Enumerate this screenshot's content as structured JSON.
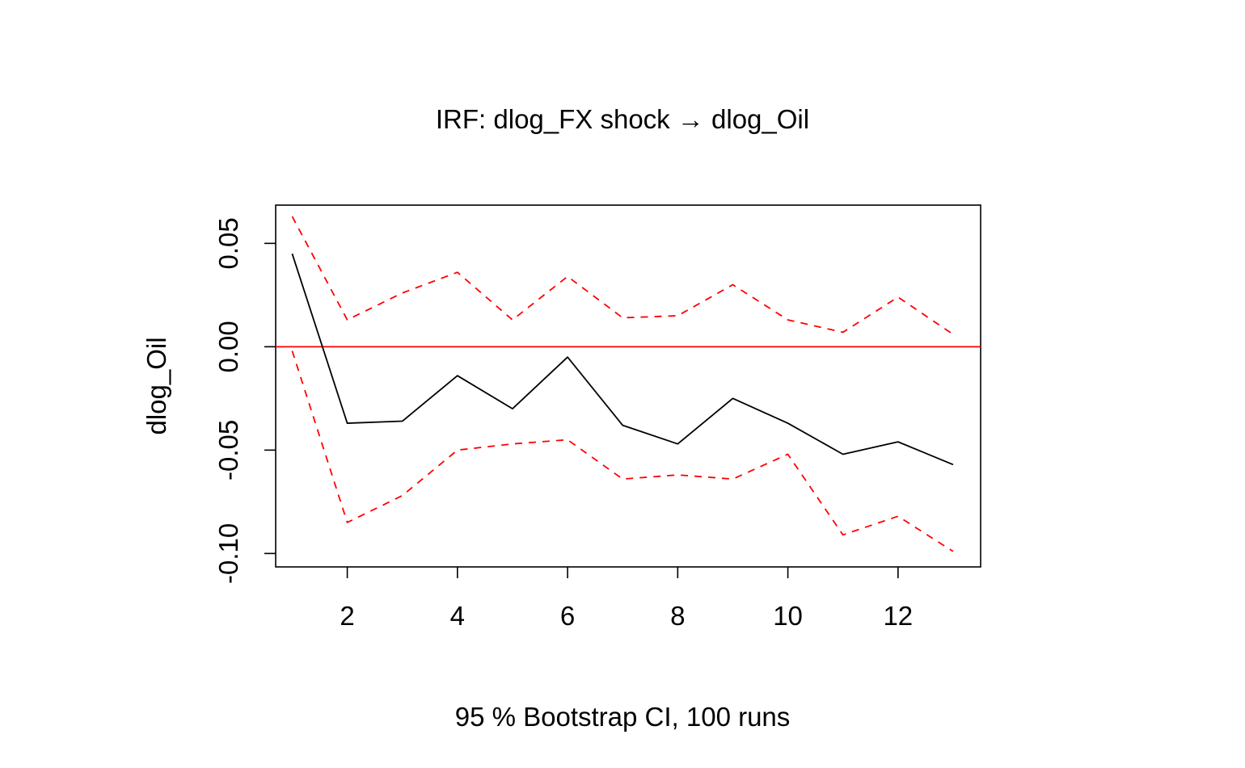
{
  "chart_data": {
    "type": "line",
    "title": "IRF: dlog_FX shock → dlog_Oil",
    "xlabel": "95 % Bootstrap CI,  100 runs",
    "ylabel": "dlog_Oil",
    "x": [
      1,
      2,
      3,
      4,
      5,
      6,
      7,
      8,
      9,
      10,
      11,
      12,
      13
    ],
    "xlim": [
      0.7,
      13.5
    ],
    "ylim": [
      -0.1065,
      0.0685
    ],
    "xticks": [
      2,
      4,
      6,
      8,
      10,
      12
    ],
    "xtick_labels": [
      "2",
      "4",
      "6",
      "8",
      "10",
      "12"
    ],
    "yticks": [
      0.05,
      0.0,
      -0.05,
      -0.1
    ],
    "ytick_labels": [
      "0.05",
      "0.00",
      "-0.05",
      "-0.10"
    ],
    "reference_line": {
      "y": 0.0,
      "color": "#ff0000"
    },
    "series": [
      {
        "name": "irf",
        "color": "#000000",
        "dash": "solid",
        "values": [
          0.045,
          -0.037,
          -0.036,
          -0.014,
          -0.03,
          -0.005,
          -0.038,
          -0.047,
          -0.025,
          -0.037,
          -0.052,
          -0.046,
          -0.057
        ]
      },
      {
        "name": "upper",
        "color": "#ff0000",
        "dash": "dashed",
        "values": [
          0.063,
          0.013,
          0.026,
          0.036,
          0.013,
          0.034,
          0.014,
          0.015,
          0.03,
          0.013,
          0.007,
          0.024,
          0.006
        ]
      },
      {
        "name": "lower",
        "color": "#ff0000",
        "dash": "dashed",
        "values": [
          -0.002,
          -0.085,
          -0.072,
          -0.05,
          -0.047,
          -0.045,
          -0.064,
          -0.062,
          -0.064,
          -0.052,
          -0.091,
          -0.082,
          -0.099
        ]
      }
    ]
  }
}
